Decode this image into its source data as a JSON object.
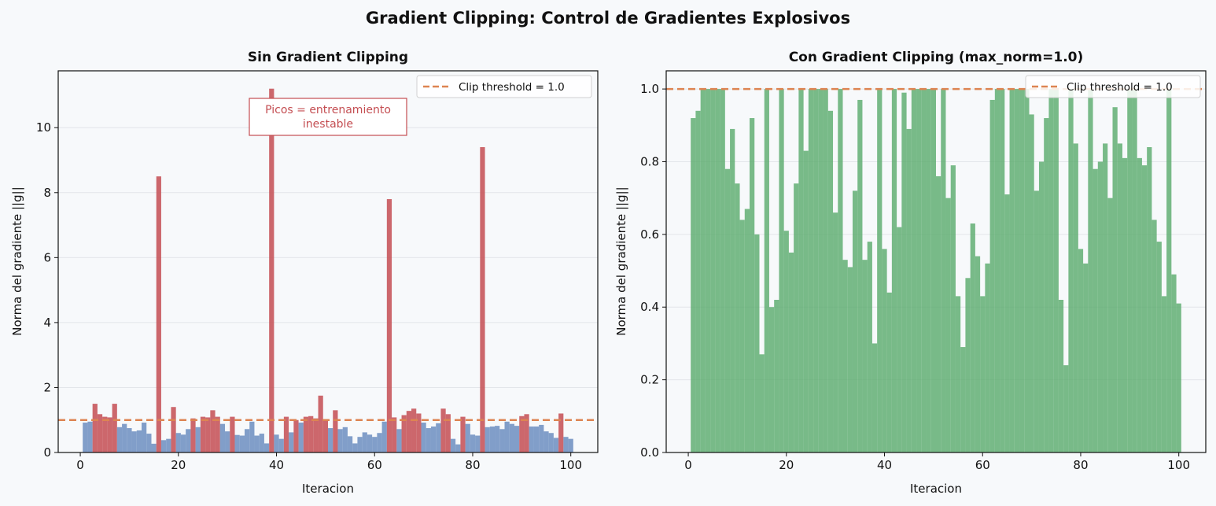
{
  "figure": {
    "title": "Gradient Clipping: Control de Gradientes Explosivos"
  },
  "colors": {
    "background": "#f7f9fb",
    "normal_bar": "#6c8ebf",
    "spike_bar": "#c44e52",
    "clipped_bar": "#55a868",
    "threshold_line": "#dd8452",
    "grid": "#e3e6ea"
  },
  "chart_data": [
    {
      "type": "bar",
      "title": "Sin Gradient Clipping",
      "xlabel": "Iteracion",
      "ylabel": "Norma del gradiente ||g||",
      "xlim": [
        -4.5,
        105.5
      ],
      "ylim": [
        0,
        11.75
      ],
      "xticks": [
        0,
        20,
        40,
        60,
        80,
        100
      ],
      "yticks": [
        0,
        2,
        4,
        6,
        8,
        10
      ],
      "grid": true,
      "legend": {
        "placement": "top-right",
        "entries": [
          "Clip threshold = 1.0"
        ]
      },
      "threshold": 1.0,
      "annotation": {
        "lines": [
          "Picos = entrenamiento",
          "inestable"
        ],
        "near_x": 50,
        "near_y": 10.4
      },
      "x": [
        1,
        2,
        3,
        4,
        5,
        6,
        7,
        8,
        9,
        10,
        11,
        12,
        13,
        14,
        15,
        16,
        17,
        18,
        19,
        20,
        21,
        22,
        23,
        24,
        25,
        26,
        27,
        28,
        29,
        30,
        31,
        32,
        33,
        34,
        35,
        36,
        37,
        38,
        39,
        40,
        41,
        42,
        43,
        44,
        45,
        46,
        47,
        48,
        49,
        50,
        51,
        52,
        53,
        54,
        55,
        56,
        57,
        58,
        59,
        60,
        61,
        62,
        63,
        64,
        65,
        66,
        67,
        68,
        69,
        70,
        71,
        72,
        73,
        74,
        75,
        76,
        77,
        78,
        79,
        80,
        81,
        82,
        83,
        84,
        85,
        86,
        87,
        88,
        89,
        90,
        91,
        92,
        93,
        94,
        95,
        96,
        97,
        98,
        99,
        100
      ],
      "series": [
        {
          "values": [
            0.92,
            0.95,
            1.5,
            1.18,
            1.1,
            1.08,
            1.5,
            0.78,
            0.88,
            0.75,
            0.65,
            0.68,
            0.92,
            0.58,
            0.27,
            8.5,
            0.38,
            0.42,
            1.4,
            0.6,
            0.55,
            0.72,
            1.05,
            0.78,
            1.1,
            1.08,
            1.3,
            1.1,
            0.88,
            0.65,
            1.1,
            0.54,
            0.52,
            0.72,
            0.95,
            0.52,
            0.58,
            0.28,
            11.2,
            0.55,
            0.42,
            1.1,
            0.62,
            1.0,
            0.92,
            1.1,
            1.12,
            1.05,
            1.75,
            1.0,
            0.75,
            1.3,
            0.72,
            0.78,
            0.5,
            0.28,
            0.48,
            0.62,
            0.55,
            0.48,
            0.6,
            0.95,
            7.8,
            1.08,
            0.72,
            1.15,
            1.28,
            1.35,
            1.2,
            0.92,
            0.75,
            0.8,
            0.9,
            1.35,
            1.18,
            0.42,
            0.25,
            1.1,
            0.88,
            0.55,
            0.52,
            9.4,
            0.78,
            0.8,
            0.82,
            0.72,
            0.95,
            0.88,
            0.82,
            1.12,
            1.18,
            0.8,
            0.8,
            0.85,
            0.65,
            0.6,
            0.45,
            1.2,
            0.48,
            0.42
          ],
          "spike_indices_over_threshold": [
            3,
            4,
            5,
            6,
            7,
            16,
            19,
            23,
            25,
            26,
            27,
            28,
            31,
            39,
            42,
            44,
            46,
            47,
            48,
            49,
            50,
            52,
            63,
            64,
            66,
            67,
            68,
            69,
            74,
            75,
            78,
            82,
            90,
            91,
            98
          ]
        }
      ]
    },
    {
      "type": "bar",
      "title": "Con Gradient Clipping (max_norm=1.0)",
      "xlabel": "Iteracion",
      "ylabel": "Norma del gradiente ||g||",
      "xlim": [
        -4.5,
        105.5
      ],
      "ylim": [
        0,
        1.05
      ],
      "xticks": [
        0,
        20,
        40,
        60,
        80,
        100
      ],
      "yticks": [
        0.0,
        0.2,
        0.4,
        0.6,
        0.8,
        1.0
      ],
      "ytick_labels": [
        "0.0",
        "0.2",
        "0.4",
        "0.6",
        "0.8",
        "1.0"
      ],
      "grid": true,
      "legend": {
        "placement": "top-right",
        "entries": [
          "Clip threshold = 1.0"
        ]
      },
      "threshold": 1.0,
      "x": [
        1,
        2,
        3,
        4,
        5,
        6,
        7,
        8,
        9,
        10,
        11,
        12,
        13,
        14,
        15,
        16,
        17,
        18,
        19,
        20,
        21,
        22,
        23,
        24,
        25,
        26,
        27,
        28,
        29,
        30,
        31,
        32,
        33,
        34,
        35,
        36,
        37,
        38,
        39,
        40,
        41,
        42,
        43,
        44,
        45,
        46,
        47,
        48,
        49,
        50,
        51,
        52,
        53,
        54,
        55,
        56,
        57,
        58,
        59,
        60,
        61,
        62,
        63,
        64,
        65,
        66,
        67,
        68,
        69,
        70,
        71,
        72,
        73,
        74,
        75,
        76,
        77,
        78,
        79,
        80,
        81,
        82,
        83,
        84,
        85,
        86,
        87,
        88,
        89,
        90,
        91,
        92,
        93,
        94,
        95,
        96,
        97,
        98,
        99,
        100
      ],
      "series": [
        {
          "values": [
            0.92,
            0.94,
            1.0,
            1.0,
            1.0,
            1.0,
            1.0,
            0.78,
            0.89,
            0.74,
            0.64,
            0.67,
            0.92,
            0.6,
            0.27,
            1.0,
            0.4,
            0.42,
            1.0,
            0.61,
            0.55,
            0.74,
            1.0,
            0.83,
            1.0,
            1.0,
            1.0,
            1.0,
            0.94,
            0.66,
            1.0,
            0.53,
            0.51,
            0.72,
            0.97,
            0.53,
            0.58,
            0.3,
            1.0,
            0.56,
            0.44,
            1.0,
            0.62,
            0.99,
            0.89,
            1.0,
            1.0,
            1.0,
            1.0,
            1.0,
            0.76,
            1.0,
            0.7,
            0.79,
            0.43,
            0.29,
            0.48,
            0.63,
            0.54,
            0.43,
            0.52,
            0.97,
            1.0,
            1.0,
            0.71,
            1.0,
            1.0,
            1.0,
            1.0,
            0.93,
            0.72,
            0.8,
            0.92,
            1.0,
            1.0,
            0.42,
            0.24,
            1.0,
            0.85,
            0.56,
            0.52,
            1.0,
            0.78,
            0.8,
            0.85,
            0.7,
            0.95,
            0.85,
            0.81,
            1.0,
            1.0,
            0.81,
            0.79,
            0.84,
            0.64,
            0.58,
            0.43,
            1.0,
            0.49,
            0.41
          ]
        }
      ]
    }
  ]
}
